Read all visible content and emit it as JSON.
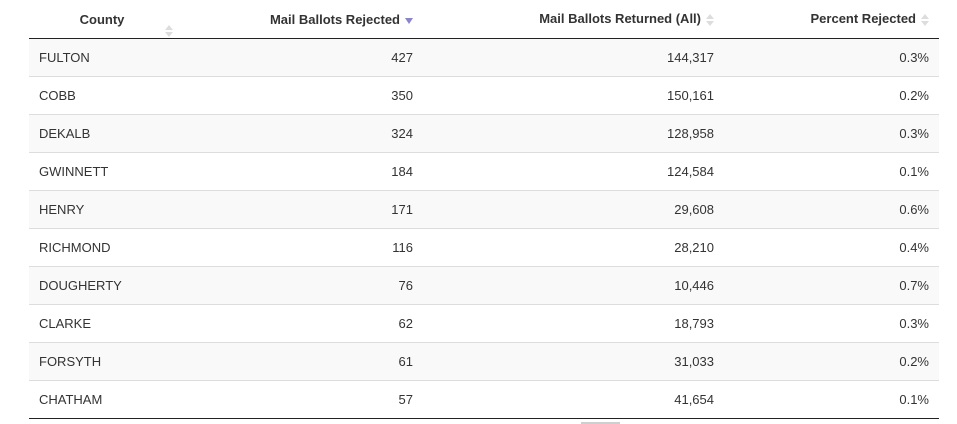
{
  "table": {
    "headers": {
      "county": "County",
      "rejected": "Mail Ballots Rejected",
      "returned": "Mail Ballots Returned (All)",
      "percent": "Percent Rejected"
    },
    "sort": {
      "column": "Mail Ballots Rejected",
      "direction": "descending",
      "active_color": "#8a84c8"
    },
    "rows": [
      {
        "county": "FULTON",
        "rejected": "427",
        "returned": "144,317",
        "percent": "0.3%"
      },
      {
        "county": "COBB",
        "rejected": "350",
        "returned": "150,161",
        "percent": "0.2%"
      },
      {
        "county": "DEKALB",
        "rejected": "324",
        "returned": "128,958",
        "percent": "0.3%"
      },
      {
        "county": "GWINNETT",
        "rejected": "184",
        "returned": "124,584",
        "percent": "0.1%"
      },
      {
        "county": "HENRY",
        "rejected": "171",
        "returned": "29,608",
        "percent": "0.6%"
      },
      {
        "county": "RICHMOND",
        "rejected": "116",
        "returned": "28,210",
        "percent": "0.4%"
      },
      {
        "county": "DOUGHERTY",
        "rejected": "76",
        "returned": "10,446",
        "percent": "0.7%"
      },
      {
        "county": "CLARKE",
        "rejected": "62",
        "returned": "18,793",
        "percent": "0.3%"
      },
      {
        "county": "FORSYTH",
        "rejected": "61",
        "returned": "31,033",
        "percent": "0.2%"
      },
      {
        "county": "CHATHAM",
        "rejected": "57",
        "returned": "41,654",
        "percent": "0.1%"
      }
    ]
  }
}
